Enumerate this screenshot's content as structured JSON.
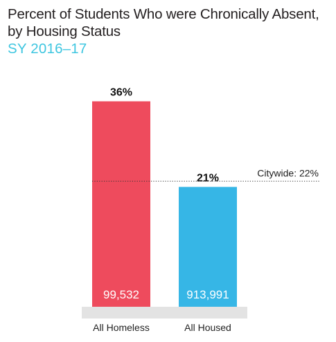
{
  "title_line1": "Percent of Students Who were Chronically Absent,",
  "title_line2": "by Housing Status",
  "subtitle": "SY 2016–17",
  "chart_data": {
    "type": "bar",
    "categories": [
      "All Homeless",
      "All Housed"
    ],
    "values": [
      36,
      21
    ],
    "value_labels": [
      "36%",
      "21%"
    ],
    "bar_inner_labels": [
      "99,532",
      "913,991"
    ],
    "bar_colors": [
      "#ee4b5d",
      "#36b6e6"
    ],
    "reference_line": {
      "value": 22,
      "label": "Citywide: 22%"
    },
    "ylim": [
      0,
      40
    ],
    "grid": false,
    "legend": "none"
  }
}
